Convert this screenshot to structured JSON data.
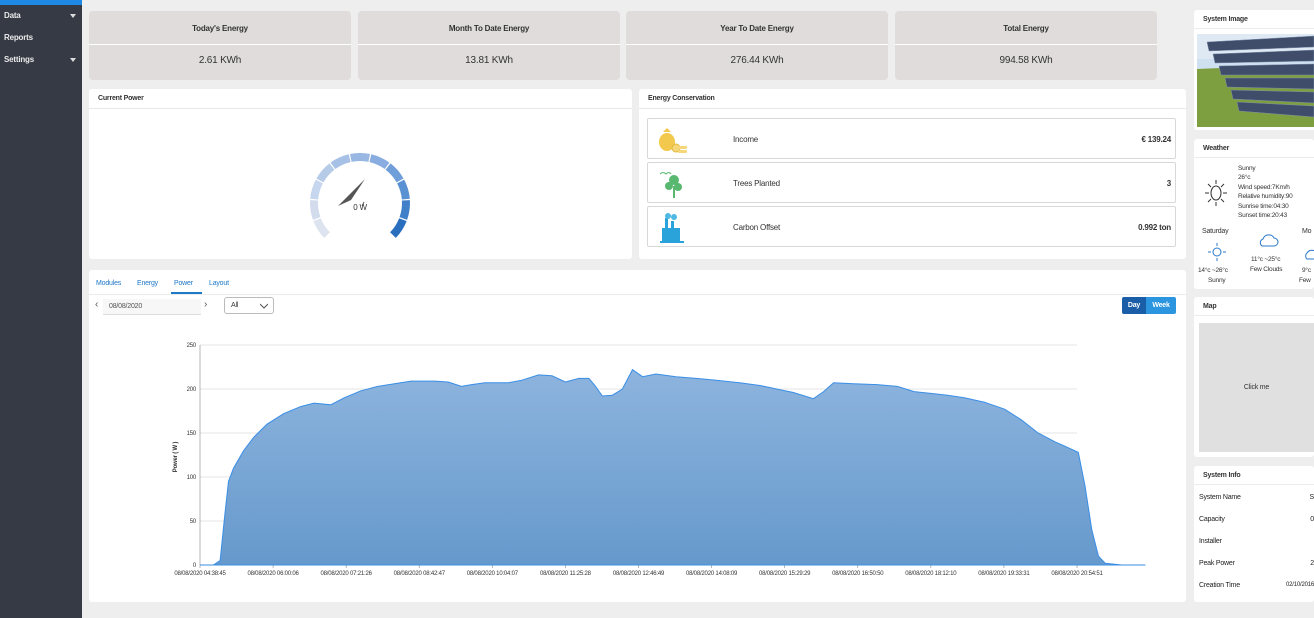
{
  "sidebar": {
    "items": [
      {
        "label": "Data",
        "has_caret": true
      },
      {
        "label": "Reports",
        "has_caret": false
      },
      {
        "label": "Settings",
        "has_caret": true
      }
    ]
  },
  "stats": [
    {
      "label": "Today's Energy",
      "value": "2.61 KWh"
    },
    {
      "label": "Month To Date Energy",
      "value": "13.81 KWh"
    },
    {
      "label": "Year To Date Energy",
      "value": "276.44 KWh"
    },
    {
      "label": "Total Energy",
      "value": "994.58 KWh"
    }
  ],
  "current_power": {
    "title": "Current Power",
    "value": "0 W",
    "gauge_fraction": 0.0
  },
  "energy_conservation": {
    "title": "Energy Conservation",
    "rows": [
      {
        "label": "Income",
        "value": "€ 139.24",
        "icon": "money-bag-icon"
      },
      {
        "label": "Trees Planted",
        "value": "3",
        "icon": "tree-icon"
      },
      {
        "label": "Carbon Offset",
        "value": "0.992 ton",
        "icon": "factory-icon"
      }
    ]
  },
  "chart_panel": {
    "tabs": [
      "Modules",
      "Energy",
      "Power",
      "Layout"
    ],
    "active_tab": "Power",
    "date": "08/08/2020",
    "select_value": "All",
    "buttons": {
      "day": "Day",
      "week": "Week"
    }
  },
  "chart_data": {
    "type": "area",
    "ylabel": "Power ( W )",
    "ylim": [
      0,
      250
    ],
    "yticks": [
      0,
      50,
      100,
      150,
      200,
      250
    ],
    "xticks": [
      "08/08/2020 04:38:45",
      "08/08/2020 06:00:06",
      "08/08/2020 07:21:26",
      "08/08/2020 08:42:47",
      "08/08/2020 10:04:07",
      "08/08/2020 11:25:28",
      "08/08/2020 12:46:49",
      "08/08/2020 14:08:09",
      "08/08/2020 15:29:29",
      "08/08/2020 16:50:50",
      "08/08/2020 18:12:10",
      "08/08/2020 19:33:31",
      "08/08/2020 20:54:51"
    ],
    "color": "#5b9bd5",
    "series": [
      {
        "values": [
          [
            0,
            0
          ],
          [
            0.4,
            0
          ],
          [
            0.6,
            5
          ],
          [
            0.75,
            60
          ],
          [
            0.85,
            95
          ],
          [
            1.0,
            110
          ],
          [
            1.3,
            130
          ],
          [
            1.6,
            145
          ],
          [
            2.0,
            160
          ],
          [
            2.5,
            172
          ],
          [
            3.0,
            180
          ],
          [
            3.4,
            184
          ],
          [
            3.9,
            182
          ],
          [
            4.3,
            190
          ],
          [
            4.8,
            198
          ],
          [
            5.3,
            203
          ],
          [
            5.8,
            206
          ],
          [
            6.3,
            209
          ],
          [
            7.0,
            209
          ],
          [
            7.4,
            208
          ],
          [
            7.8,
            203
          ],
          [
            8.1,
            205
          ],
          [
            8.5,
            207
          ],
          [
            9.2,
            207
          ],
          [
            9.6,
            210
          ],
          [
            10.1,
            216
          ],
          [
            10.5,
            215
          ],
          [
            10.9,
            208
          ],
          [
            11.3,
            212
          ],
          [
            11.6,
            212
          ],
          [
            11.8,
            203
          ],
          [
            12.0,
            192
          ],
          [
            12.3,
            193
          ],
          [
            12.6,
            200
          ],
          [
            12.9,
            222
          ],
          [
            13.2,
            214
          ],
          [
            13.6,
            217
          ],
          [
            14.2,
            214
          ],
          [
            14.8,
            212
          ],
          [
            15.4,
            210
          ],
          [
            16.1,
            207
          ],
          [
            16.7,
            204
          ],
          [
            17.2,
            200
          ],
          [
            17.7,
            196
          ],
          [
            18.3,
            189
          ],
          [
            18.6,
            197
          ],
          [
            18.9,
            207
          ],
          [
            19.5,
            206
          ],
          [
            20.2,
            205
          ],
          [
            20.8,
            203
          ],
          [
            21.3,
            197
          ],
          [
            21.8,
            195
          ],
          [
            22.3,
            193
          ],
          [
            22.8,
            190
          ],
          [
            23.4,
            185
          ],
          [
            24.0,
            177
          ],
          [
            24.5,
            165
          ],
          [
            25.0,
            150
          ],
          [
            25.5,
            140
          ],
          [
            25.8,
            135
          ],
          [
            26.2,
            128
          ],
          [
            26.4,
            90
          ],
          [
            26.6,
            40
          ],
          [
            26.8,
            10
          ],
          [
            27.0,
            2
          ],
          [
            27.5,
            0
          ],
          [
            28.2,
            0
          ]
        ],
        "x_unit": "hours after 04:38:45 (1 tick = 1.355 h)"
      }
    ]
  },
  "system_image": {
    "title": "System Image"
  },
  "weather": {
    "title": "Weather",
    "current": [
      "Sunny",
      "26°c",
      "Wind speed:7Km/h",
      "Relative humidity:90",
      "Sunrise time:04:30",
      "Sunset time:20:43"
    ],
    "forecast": [
      {
        "day": "Saturday",
        "temp": "14°c ~26°c",
        "desc": "Sunny",
        "icon": "sun-icon"
      },
      {
        "day": "",
        "temp": "11°c ~25°c",
        "desc": "Few Clouds",
        "icon": "cloud-icon"
      },
      {
        "day": "Mo",
        "temp": "9°c",
        "desc": "Few",
        "icon": "cloud-icon"
      }
    ]
  },
  "map": {
    "title": "Map",
    "placeholder": "Click me"
  },
  "system_info": {
    "title": "System Info",
    "rows": [
      {
        "label": "System Name",
        "value": "S"
      },
      {
        "label": "Capacity",
        "value": "0"
      },
      {
        "label": "Installer",
        "value": ""
      },
      {
        "label": "Peak Power",
        "value": "2"
      },
      {
        "label": "Creation Time",
        "value": "02/10/2016"
      }
    ]
  }
}
